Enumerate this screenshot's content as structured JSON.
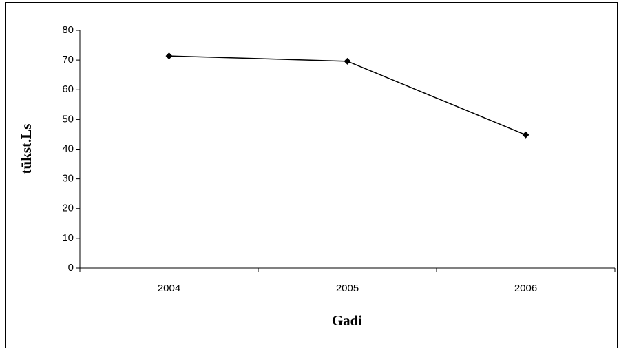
{
  "chart_data": {
    "type": "line",
    "x_label": "Gadi",
    "y_label": "tūkst.Ls",
    "categories": [
      "2004",
      "2005",
      "2006"
    ],
    "series": [
      {
        "name": "tūkst.Ls",
        "color": "#000000",
        "values": [
          71.4,
          69.6,
          44.8
        ]
      }
    ],
    "ylim": [
      0,
      80
    ],
    "yticks": [
      0,
      10,
      20,
      30,
      40,
      50,
      60,
      70,
      80
    ],
    "grid": false
  }
}
